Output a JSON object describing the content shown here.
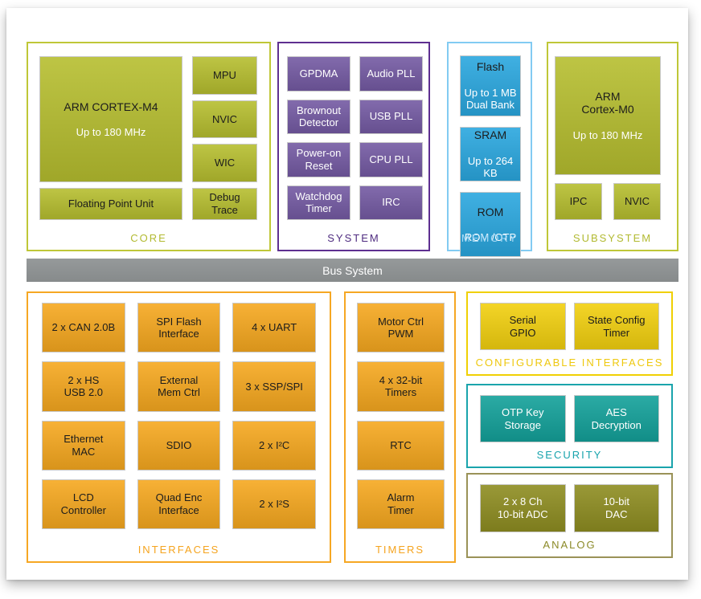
{
  "colors": {
    "green": "#b6be2f",
    "green_border": "#bfc737",
    "green_label": "#b2ba31",
    "purple": "#745aa3",
    "purple_border": "#5e2f90",
    "purple_label": "#4f2c80",
    "blue": "#2aa7df",
    "blue_border": "#82cbf2",
    "blue_label": "#a6d9f6",
    "orange": "#f6a81f",
    "orange_border": "#f6a723",
    "orange_label": "#f5a41f",
    "yellow": "#f2d00f",
    "yellow_border": "#f0d003",
    "yellow_label": "#eec80e",
    "teal": "#13a19a",
    "teal_border": "#1aa4ac",
    "teal_label": "#17a3ac",
    "olive": "#8e8d21",
    "olive_border": "#9a9257",
    "olive_label": "#8b8a28",
    "bus_gray": "#8f9394"
  },
  "bus": {
    "label": "Bus System"
  },
  "sections": {
    "core": {
      "label": "CORE",
      "boxes": {
        "m4": {
          "title": "ARM CORTEX-M4",
          "subtitle": "Up to 180 MHz"
        },
        "mpu": "MPU",
        "nvic": "NVIC",
        "wic": "WIC",
        "fpu": "Floating Point Unit",
        "debug_trace": "Debug\nTrace"
      }
    },
    "system": {
      "label": "SYSTEM",
      "boxes": {
        "gpdma": "GPDMA",
        "audio_pll": "Audio PLL",
        "brownout": "Brownout\nDetector",
        "usb_pll": "USB PLL",
        "power_on_reset": "Power-on\nReset",
        "cpu_pll": "CPU PLL",
        "watchdog": "Watchdog\nTimer",
        "irc": "IRC"
      }
    },
    "memory": {
      "label": "MEMORY",
      "boxes": {
        "flash": {
          "title": "Flash",
          "subtitle": "Up to 1 MB\nDual Bank"
        },
        "sram": {
          "title": "SRAM",
          "subtitle": "Up to 264 KB"
        },
        "rom": {
          "title": "ROM",
          "subtitle": "ROM /OTP"
        }
      }
    },
    "subsystem": {
      "label": "SUBSYSTEM",
      "boxes": {
        "m0": {
          "title": "ARM\nCortex-M0",
          "subtitle": "Up to 180 MHz"
        },
        "ipc": "IPC",
        "nvic": "NVIC"
      }
    },
    "interfaces": {
      "label": "INTERFACES",
      "boxes": {
        "can": "2 x CAN 2.0B",
        "spi_flash": "SPI Flash\nInterface",
        "uart": "4 x UART",
        "usb": "2 x HS\nUSB 2.0",
        "ext_mem": "External\nMem Ctrl",
        "ssp_spi": "3 x SSP/SPI",
        "ethernet": "Ethernet\nMAC",
        "sdio": "SDIO",
        "i2c": "2 x I²C",
        "lcd": "LCD\nController",
        "quad_enc": "Quad Enc\nInterface",
        "i2s": "2 x I²S"
      }
    },
    "timers": {
      "label": "TIMERS",
      "boxes": {
        "motor_pwm": "Motor Ctrl\nPWM",
        "timers_32": "4 x 32-bit\nTimers",
        "rtc": "RTC",
        "alarm": "Alarm\nTimer"
      }
    },
    "configurable": {
      "label": "CONFIGURABLE INTERFACES",
      "boxes": {
        "serial_gpio": "Serial\nGPIO",
        "state_config": "State Config\nTimer"
      }
    },
    "security": {
      "label": "SECURITY",
      "boxes": {
        "otp": "OTP Key\nStorage",
        "aes": "AES\nDecryption"
      }
    },
    "analog": {
      "label": "ANALOG",
      "boxes": {
        "adc": "2 x 8 Ch\n10-bit ADC",
        "dac": "10-bit\nDAC"
      }
    }
  }
}
